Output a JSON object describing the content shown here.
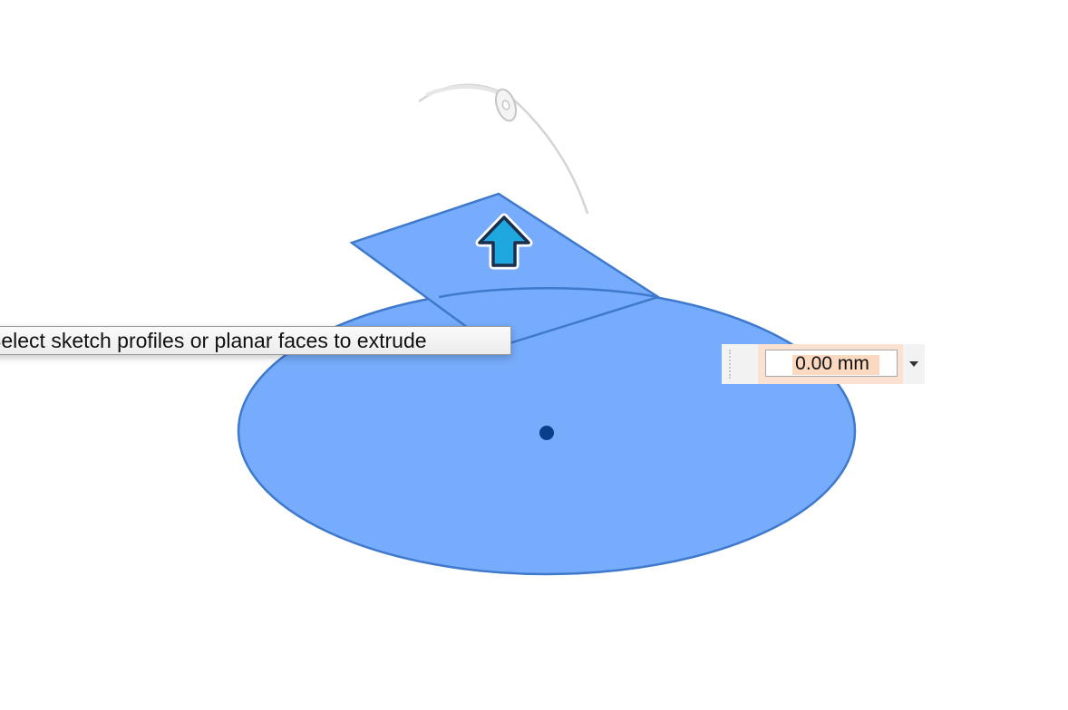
{
  "canvas": {
    "background_color": "#ffffff",
    "profile_fill_color": "#76acfb",
    "profile_stroke_color": "#3f79cc",
    "center_point_color": "#0a3d8a",
    "arrow_fill_color": "#1fa7df",
    "rotate_arc_color": "#d0d0d0"
  },
  "tooltip": {
    "text": "Select sketch profiles or planar faces to extrude"
  },
  "distance_input": {
    "value": "0.00 mm",
    "highlight_color": "#f9e2d2"
  },
  "icons": {
    "extrude_arrow": "arrow-up-icon",
    "angle_handle": "rotate-handle-icon",
    "dropdown": "caret-down-icon"
  }
}
